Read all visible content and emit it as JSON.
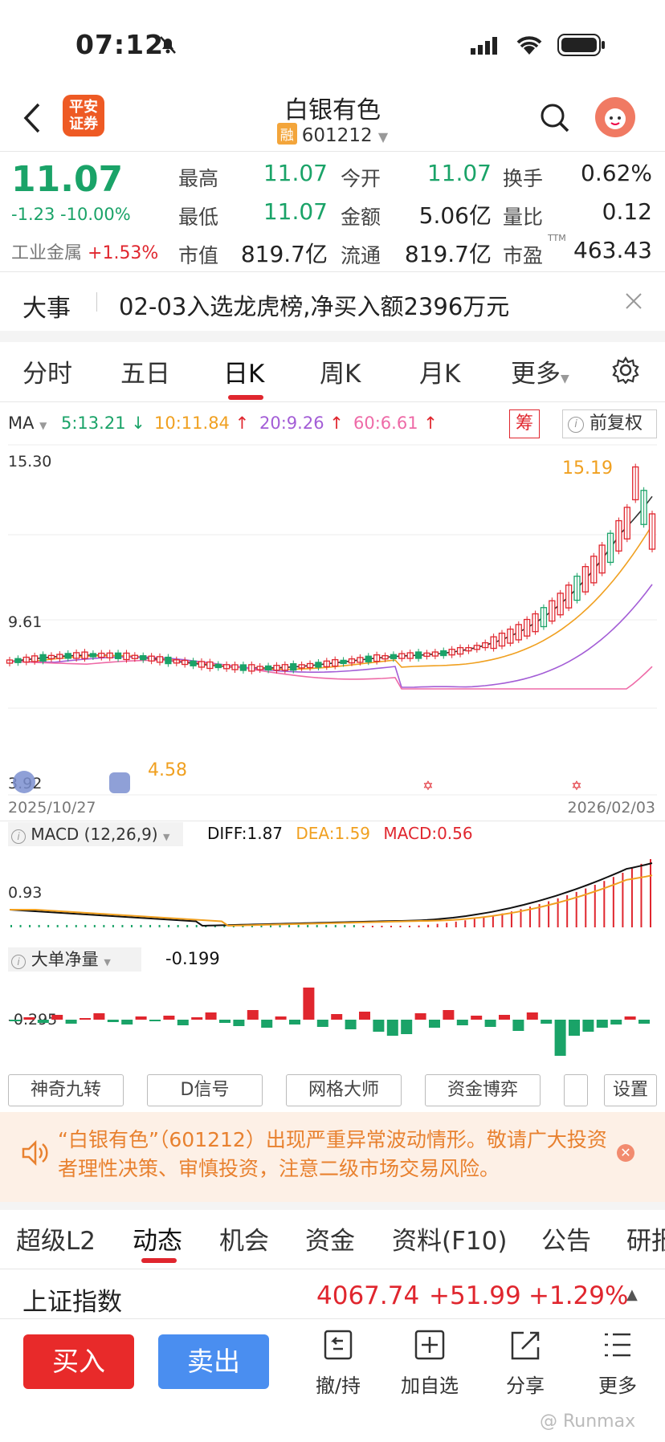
{
  "status_bar": {
    "time": "07:12"
  },
  "header": {
    "back_icon": "chevron-left-icon",
    "broker_logo": "平安\n证券",
    "stock_name": "白银有色",
    "margin_badge": "融",
    "stock_code": "601212"
  },
  "quote": {
    "price": "11.07",
    "change": "-1.23",
    "change_pct": "-10.00%",
    "sector_name": "工业金属",
    "sector_change": "+1.53%",
    "fields": [
      {
        "label": "最高",
        "value": "11.07"
      },
      {
        "label": "今开",
        "value": "11.07"
      },
      {
        "label": "换手",
        "value": "0.62%"
      },
      {
        "label": "最低",
        "value": "11.07"
      },
      {
        "label": "金额",
        "value": "5.06亿"
      },
      {
        "label": "量比",
        "value": "0.12"
      },
      {
        "label": "市值",
        "value": "819.7亿"
      },
      {
        "label": "流通",
        "value": "819.7亿"
      },
      {
        "label": "市盈",
        "value": "463.43"
      }
    ],
    "pe_superscript": "TTM"
  },
  "notice": {
    "tag": "大事",
    "text": "02-03入选龙虎榜,净买入额2396万元"
  },
  "chart_tabs": [
    "分时",
    "五日",
    "日K",
    "周K",
    "月K",
    "更多"
  ],
  "chart_tab_active": "日K",
  "ma_legend": {
    "label": "MA",
    "items": [
      {
        "text": "5:13.21",
        "arrow": "↓",
        "color": "#1aa368"
      },
      {
        "text": "10:11.84",
        "arrow": "↑",
        "color": "#f0a020"
      },
      {
        "text": "20:9.26",
        "arrow": "↑",
        "color": "#a35dd6"
      },
      {
        "text": "60:6.61",
        "arrow": "↑",
        "color": "#ee6aa7"
      }
    ],
    "chip_button": "筹",
    "adjust_button": "前复权"
  },
  "chart_data": {
    "type": "candlestick",
    "y_ticks": [
      "15.30",
      "9.61",
      "3.92"
    ],
    "x_start": "2025/10/27",
    "x_end": "2026/02/03",
    "max_label": "15.19",
    "min_label": "4.58",
    "macd": {
      "title": "MACD (12,26,9)",
      "diff": "DIFF:1.87",
      "dea": "DEA:1.59",
      "macd": "MACD:0.56",
      "y_tick": "0.93"
    },
    "net_flow": {
      "title": "大单净量",
      "value": "-0.199",
      "y_tick": "-0.295"
    }
  },
  "indicator_buttons": [
    "神奇九转",
    "D信号",
    "网格大师",
    "资金博弈",
    "",
    "设置"
  ],
  "alert": {
    "text": "“白银有色”（601212）出现严重异常波动情形。敬请广大投资者理性决策、审慎投资，注意二级市场交易风险。"
  },
  "bottom_tabs": [
    "超级L2",
    "动态",
    "机会",
    "资金",
    "资料(F10)",
    "公告",
    "研报"
  ],
  "bottom_tab_active": "动态",
  "index_ticker": {
    "name": "上证指数",
    "value": "4067.74",
    "change": "+51.99",
    "pct": "+1.29%"
  },
  "actions": {
    "buy": "买入",
    "sell": "卖出",
    "items": [
      {
        "label": "撤/持",
        "icon": "cancel-hold-icon"
      },
      {
        "label": "加自选",
        "icon": "add-watchlist-icon"
      },
      {
        "label": "分享",
        "icon": "share-icon"
      },
      {
        "label": "更多",
        "icon": "more-menu-icon"
      }
    ]
  },
  "watermark": "Runmax"
}
